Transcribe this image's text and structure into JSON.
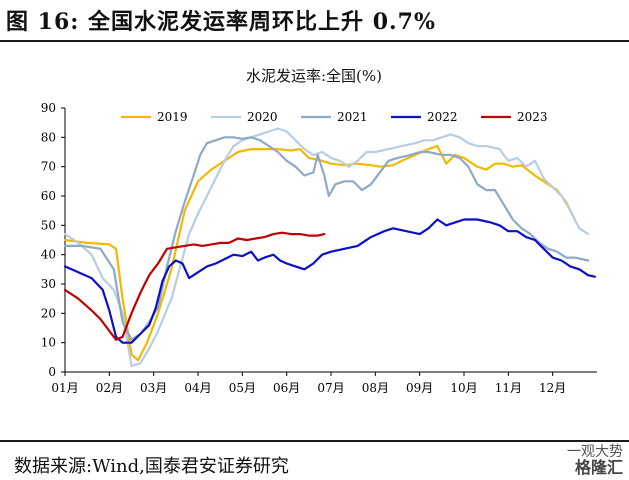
{
  "page": {
    "title": "图 16:  全国水泥发运率周环比上升 0.7%",
    "source": "数据来源:Wind,国泰君安证券研究",
    "watermark_line1": "一观大势",
    "watermark_line2": "格隆汇"
  },
  "chart_data": {
    "type": "line",
    "title": "水泥发运率:全国(%)",
    "ylim": [
      0,
      90
    ],
    "yticks": [
      0,
      10,
      20,
      30,
      40,
      50,
      60,
      70,
      80,
      90
    ],
    "xlim": [
      1,
      13
    ],
    "xticks": [
      {
        "x": 1,
        "label": "01月"
      },
      {
        "x": 2,
        "label": "02月"
      },
      {
        "x": 3,
        "label": "03月"
      },
      {
        "x": 4,
        "label": "04月"
      },
      {
        "x": 5,
        "label": "05月"
      },
      {
        "x": 6,
        "label": "06月"
      },
      {
        "x": 7,
        "label": "07月"
      },
      {
        "x": 8,
        "label": "08月"
      },
      {
        "x": 9,
        "label": "09月"
      },
      {
        "x": 10,
        "label": "10月"
      },
      {
        "x": 11,
        "label": "11月"
      },
      {
        "x": 12,
        "label": "12月"
      }
    ],
    "grid": false,
    "legend_position": "top",
    "series": [
      {
        "name": "2019",
        "color": "#f5b800",
        "points": [
          [
            1.0,
            45
          ],
          [
            1.5,
            44
          ],
          [
            2.0,
            43.5
          ],
          [
            2.15,
            42
          ],
          [
            2.3,
            25
          ],
          [
            2.5,
            6
          ],
          [
            2.65,
            4
          ],
          [
            2.85,
            10
          ],
          [
            3.1,
            20
          ],
          [
            3.4,
            35
          ],
          [
            3.7,
            55
          ],
          [
            4.0,
            65
          ],
          [
            4.3,
            69
          ],
          [
            4.6,
            72
          ],
          [
            4.9,
            75
          ],
          [
            5.2,
            76
          ],
          [
            5.5,
            76
          ],
          [
            5.8,
            76
          ],
          [
            6.1,
            75.5
          ],
          [
            6.3,
            76
          ],
          [
            6.5,
            73
          ],
          [
            6.8,
            72
          ],
          [
            7.0,
            71
          ],
          [
            7.3,
            70.5
          ],
          [
            7.6,
            71
          ],
          [
            7.9,
            70.5
          ],
          [
            8.1,
            70
          ],
          [
            8.4,
            70.5
          ],
          [
            8.6,
            72
          ],
          [
            8.9,
            74
          ],
          [
            9.2,
            76
          ],
          [
            9.4,
            77
          ],
          [
            9.6,
            71
          ],
          [
            9.8,
            74
          ],
          [
            10.0,
            73
          ],
          [
            10.3,
            70
          ],
          [
            10.5,
            69
          ],
          [
            10.7,
            71
          ],
          [
            10.9,
            71
          ],
          [
            11.1,
            70
          ],
          [
            11.3,
            70.5
          ],
          [
            11.6,
            67
          ],
          [
            11.9,
            64
          ],
          [
            12.1,
            62
          ],
          [
            12.3,
            58
          ],
          [
            12.5,
            52
          ]
        ]
      },
      {
        "name": "2020",
        "color": "#b8cce4",
        "points": [
          [
            1.0,
            47
          ],
          [
            1.3,
            44
          ],
          [
            1.6,
            40
          ],
          [
            1.85,
            32
          ],
          [
            2.1,
            28
          ],
          [
            2.3,
            20
          ],
          [
            2.5,
            2
          ],
          [
            2.7,
            3
          ],
          [
            2.9,
            8
          ],
          [
            3.1,
            14
          ],
          [
            3.4,
            25
          ],
          [
            3.6,
            36
          ],
          [
            3.8,
            47
          ],
          [
            4.0,
            54
          ],
          [
            4.2,
            60
          ],
          [
            4.4,
            66
          ],
          [
            4.6,
            72
          ],
          [
            4.8,
            77
          ],
          [
            5.0,
            79
          ],
          [
            5.2,
            80
          ],
          [
            5.4,
            81
          ],
          [
            5.6,
            82
          ],
          [
            5.8,
            83
          ],
          [
            6.0,
            82
          ],
          [
            6.2,
            79
          ],
          [
            6.4,
            76
          ],
          [
            6.6,
            74
          ],
          [
            6.8,
            75
          ],
          [
            7.0,
            73
          ],
          [
            7.2,
            72
          ],
          [
            7.4,
            70
          ],
          [
            7.6,
            72
          ],
          [
            7.8,
            75
          ],
          [
            8.0,
            75
          ],
          [
            8.3,
            76
          ],
          [
            8.6,
            77
          ],
          [
            8.9,
            78
          ],
          [
            9.1,
            79
          ],
          [
            9.3,
            79
          ],
          [
            9.5,
            80
          ],
          [
            9.7,
            81
          ],
          [
            9.9,
            80
          ],
          [
            10.1,
            78
          ],
          [
            10.3,
            77
          ],
          [
            10.5,
            77
          ],
          [
            10.8,
            76
          ],
          [
            11.0,
            72
          ],
          [
            11.2,
            73
          ],
          [
            11.4,
            70
          ],
          [
            11.6,
            72
          ],
          [
            11.8,
            66
          ],
          [
            12.0,
            63
          ],
          [
            12.2,
            60
          ],
          [
            12.4,
            55
          ],
          [
            12.6,
            49
          ],
          [
            12.8,
            47
          ]
        ]
      },
      {
        "name": "2021",
        "color": "#8ea9c8",
        "points": [
          [
            1.0,
            43
          ],
          [
            1.4,
            43
          ],
          [
            1.8,
            42
          ],
          [
            2.1,
            35
          ],
          [
            2.3,
            17
          ],
          [
            2.5,
            11
          ],
          [
            2.7,
            13
          ],
          [
            2.9,
            17
          ],
          [
            3.1,
            22
          ],
          [
            3.3,
            36
          ],
          [
            3.5,
            48
          ],
          [
            3.7,
            58
          ],
          [
            3.9,
            67
          ],
          [
            4.05,
            74
          ],
          [
            4.2,
            78
          ],
          [
            4.4,
            79
          ],
          [
            4.6,
            80
          ],
          [
            4.8,
            80
          ],
          [
            5.0,
            79.5
          ],
          [
            5.2,
            80
          ],
          [
            5.4,
            79
          ],
          [
            5.6,
            77
          ],
          [
            5.8,
            75
          ],
          [
            6.0,
            72
          ],
          [
            6.2,
            70
          ],
          [
            6.4,
            67
          ],
          [
            6.6,
            68
          ],
          [
            6.7,
            74
          ],
          [
            6.85,
            67
          ],
          [
            6.95,
            60
          ],
          [
            7.1,
            64
          ],
          [
            7.3,
            65
          ],
          [
            7.5,
            65
          ],
          [
            7.7,
            62
          ],
          [
            7.9,
            64
          ],
          [
            8.1,
            68
          ],
          [
            8.3,
            72
          ],
          [
            8.5,
            73
          ],
          [
            8.8,
            74
          ],
          [
            9.0,
            75
          ],
          [
            9.2,
            75
          ],
          [
            9.5,
            74
          ],
          [
            9.7,
            74
          ],
          [
            9.9,
            73
          ],
          [
            10.1,
            70
          ],
          [
            10.3,
            64
          ],
          [
            10.5,
            62
          ],
          [
            10.7,
            62
          ],
          [
            10.9,
            57
          ],
          [
            11.1,
            52
          ],
          [
            11.3,
            49
          ],
          [
            11.5,
            47
          ],
          [
            11.7,
            44
          ],
          [
            11.9,
            42
          ],
          [
            12.1,
            41
          ],
          [
            12.3,
            39
          ],
          [
            12.5,
            39
          ],
          [
            12.8,
            38
          ]
        ]
      },
      {
        "name": "2022",
        "color": "#0a10c8",
        "points": [
          [
            1.0,
            36
          ],
          [
            1.3,
            34
          ],
          [
            1.6,
            32
          ],
          [
            1.85,
            28
          ],
          [
            2.0,
            21
          ],
          [
            2.15,
            12
          ],
          [
            2.3,
            10
          ],
          [
            2.5,
            10
          ],
          [
            2.7,
            13
          ],
          [
            2.9,
            16
          ],
          [
            3.05,
            22
          ],
          [
            3.2,
            31
          ],
          [
            3.35,
            36
          ],
          [
            3.5,
            38
          ],
          [
            3.65,
            37
          ],
          [
            3.8,
            32
          ],
          [
            4.0,
            34
          ],
          [
            4.2,
            36
          ],
          [
            4.4,
            37
          ],
          [
            4.6,
            38.5
          ],
          [
            4.8,
            40
          ],
          [
            5.0,
            39.5
          ],
          [
            5.2,
            41
          ],
          [
            5.35,
            38
          ],
          [
            5.5,
            39
          ],
          [
            5.7,
            40
          ],
          [
            5.85,
            38
          ],
          [
            6.0,
            37
          ],
          [
            6.2,
            36
          ],
          [
            6.4,
            35
          ],
          [
            6.6,
            37
          ],
          [
            6.8,
            40
          ],
          [
            7.0,
            41
          ],
          [
            7.3,
            42
          ],
          [
            7.6,
            43
          ],
          [
            7.9,
            46
          ],
          [
            8.2,
            48
          ],
          [
            8.4,
            49
          ],
          [
            8.7,
            48
          ],
          [
            9.0,
            47
          ],
          [
            9.2,
            49
          ],
          [
            9.4,
            52
          ],
          [
            9.6,
            50
          ],
          [
            9.8,
            51
          ],
          [
            10.0,
            52
          ],
          [
            10.3,
            52
          ],
          [
            10.6,
            51
          ],
          [
            10.8,
            50
          ],
          [
            11.0,
            48
          ],
          [
            11.2,
            48
          ],
          [
            11.4,
            46
          ],
          [
            11.6,
            45
          ],
          [
            11.8,
            42
          ],
          [
            12.0,
            39
          ],
          [
            12.2,
            38
          ],
          [
            12.4,
            36
          ],
          [
            12.6,
            35
          ],
          [
            12.8,
            33
          ],
          [
            12.95,
            32.5
          ]
        ]
      },
      {
        "name": "2023",
        "color": "#c00000",
        "points": [
          [
            1.0,
            28
          ],
          [
            1.3,
            25
          ],
          [
            1.6,
            21
          ],
          [
            1.8,
            18
          ],
          [
            2.0,
            14
          ],
          [
            2.15,
            11
          ],
          [
            2.3,
            12
          ],
          [
            2.5,
            20
          ],
          [
            2.7,
            27
          ],
          [
            2.9,
            33
          ],
          [
            3.1,
            37
          ],
          [
            3.3,
            42
          ],
          [
            3.5,
            42.5
          ],
          [
            3.7,
            43
          ],
          [
            3.9,
            43.5
          ],
          [
            4.1,
            43
          ],
          [
            4.3,
            43.5
          ],
          [
            4.5,
            44
          ],
          [
            4.7,
            44
          ],
          [
            4.9,
            45.5
          ],
          [
            5.1,
            45
          ],
          [
            5.3,
            45.5
          ],
          [
            5.5,
            46
          ],
          [
            5.7,
            47
          ],
          [
            5.9,
            47.5
          ],
          [
            6.1,
            47
          ],
          [
            6.3,
            47
          ],
          [
            6.5,
            46.5
          ],
          [
            6.7,
            46.5
          ],
          [
            6.85,
            47
          ]
        ]
      }
    ]
  }
}
